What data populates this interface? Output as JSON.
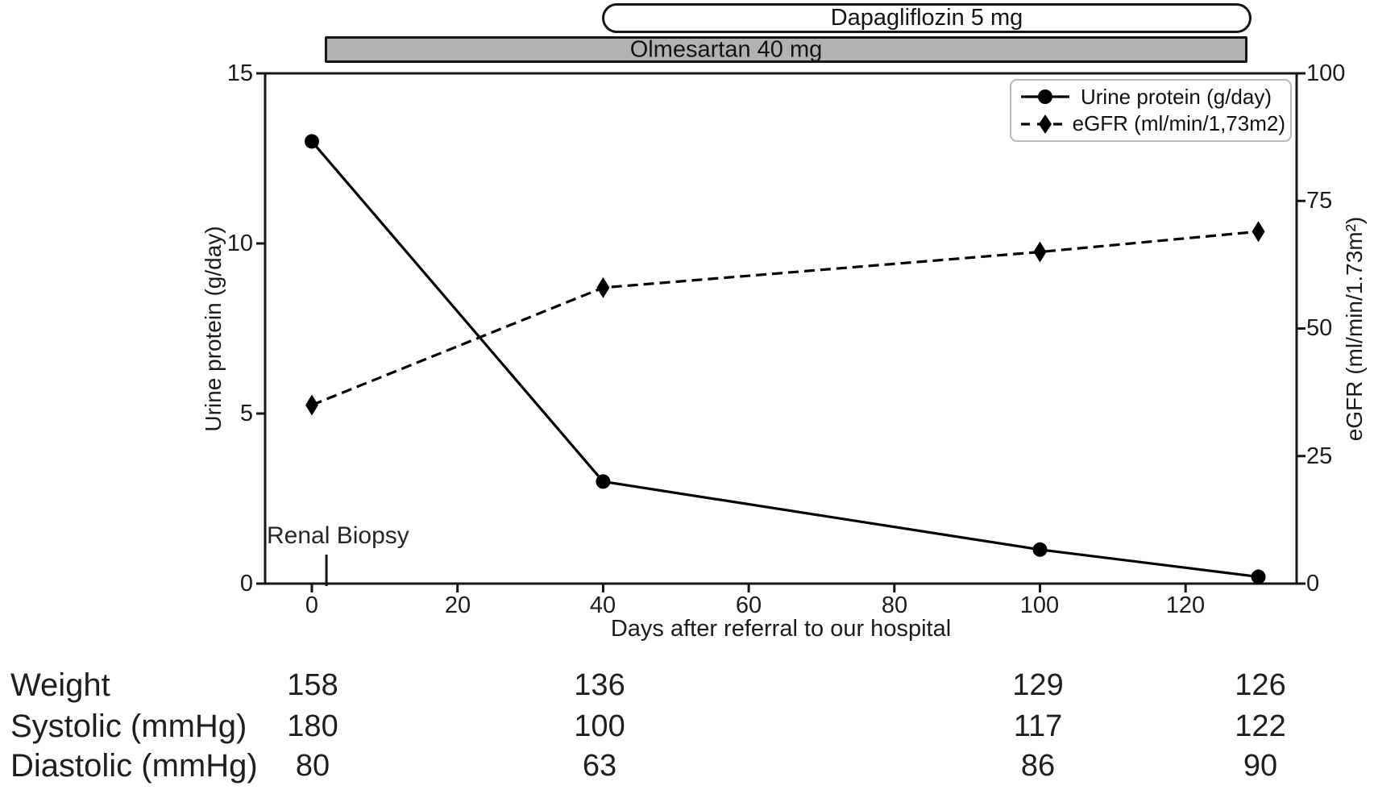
{
  "treatment_bars": [
    {
      "label": "Dapagliflozin 5 mg",
      "style": "white-outlined-rounded",
      "day_range": [
        40,
        129
      ]
    },
    {
      "label": "Olmesartan 40 mg",
      "style": "gray-filled",
      "fill_color": "#b2b2b2",
      "day_range": [
        2,
        129
      ]
    }
  ],
  "chart_data": {
    "type": "line",
    "title": "",
    "xlabel": "Days after referral to our hospital",
    "ylabel_left": "Urine protein (g/day)",
    "ylabel_right": "eGFR (ml/min/1.73m²)",
    "x_ticks": [
      0,
      20,
      40,
      60,
      80,
      100,
      120
    ],
    "xlim": [
      -6.5,
      135.5
    ],
    "ylim_left": [
      0,
      15
    ],
    "yticks_left": [
      0,
      5,
      10,
      15
    ],
    "ylim_right": [
      0,
      100
    ],
    "yticks_right": [
      0,
      25,
      50,
      75,
      100
    ],
    "grid": false,
    "legend_position": "top-right",
    "series": [
      {
        "name": "Urine protein (g/day)",
        "axis": "left",
        "line": "solid",
        "marker": "circle",
        "x": [
          0,
          40,
          100,
          130
        ],
        "values": [
          13,
          3,
          1,
          0.2
        ]
      },
      {
        "name": "eGFR (ml/min/1,73m2)",
        "axis": "right",
        "line": "dashed",
        "marker": "diamond",
        "x": [
          0,
          40,
          100,
          130
        ],
        "values": [
          35,
          58,
          65,
          69
        ]
      }
    ],
    "annotation": {
      "label": "Renal Biopsy",
      "x": 2
    }
  },
  "legend": {
    "items": [
      {
        "label": "Urine protein (g/day)",
        "marker": "solid-line-circle"
      },
      {
        "label": "eGFR (ml/min/1,73m2)",
        "marker": "dashed-line-diamond"
      }
    ]
  },
  "table": {
    "column_days": [
      0,
      40,
      100,
      130
    ],
    "rows": [
      {
        "label": "Weight",
        "values": [
          "158",
          "136",
          "129",
          "126"
        ]
      },
      {
        "label": "Systolic (mmHg)",
        "values": [
          "180",
          "100",
          "117",
          "122"
        ]
      },
      {
        "label": "Diastolic (mmHg)",
        "values": [
          "80",
          "63",
          "86",
          "90"
        ]
      }
    ]
  },
  "colors": {
    "line": "#000000",
    "bar_gray": "#b2b2b2",
    "text": "#1c1c1c",
    "background": "#ffffff"
  }
}
